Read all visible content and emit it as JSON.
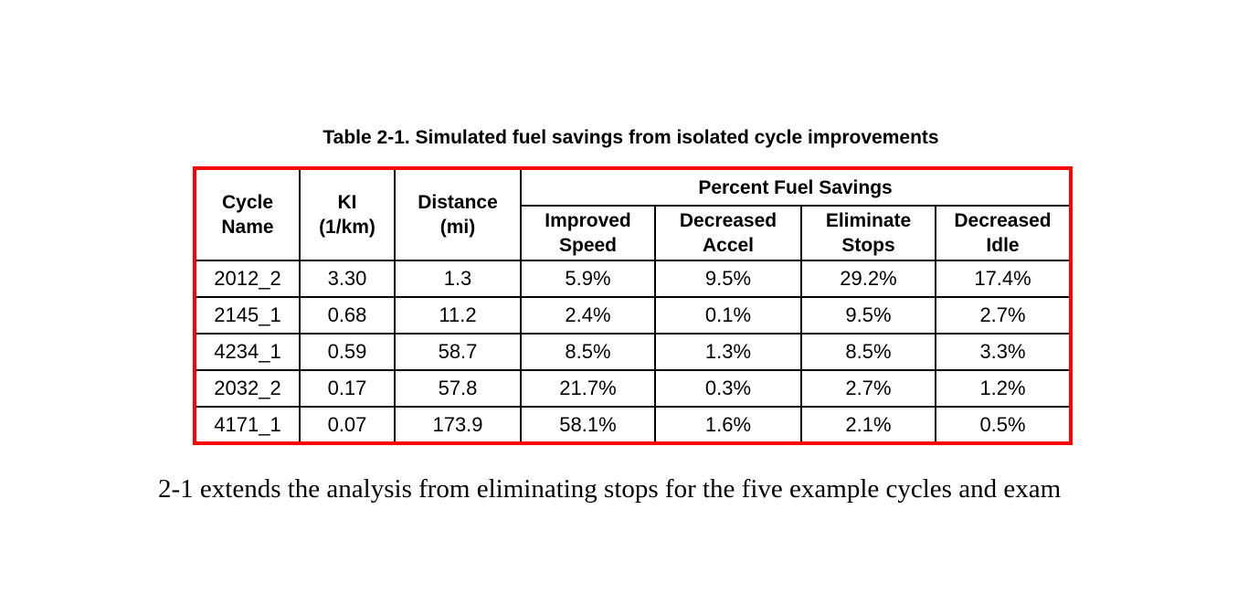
{
  "document": {
    "table_caption": "Table 2-1. Simulated fuel savings from isolated cycle improvements",
    "body_text": "2-1 extends the analysis from eliminating stops for the five example cycles and exam"
  },
  "table": {
    "header": {
      "cycle_name": "Cycle\nName",
      "ki": "KI\n(1/km)",
      "distance": "Distance\n(mi)",
      "savings_group": "Percent Fuel Savings",
      "improved_speed": "Improved\nSpeed",
      "decreased_accel": "Decreased\nAccel",
      "eliminate_stops": "Eliminate\nStops",
      "decreased_idle": "Decreased\nIdle"
    },
    "rows": [
      [
        "2012_2",
        "3.30",
        "1.3",
        "5.9%",
        "9.5%",
        "29.2%",
        "17.4%"
      ],
      [
        "2145_1",
        "0.68",
        "11.2",
        "2.4%",
        "0.1%",
        "9.5%",
        "2.7%"
      ],
      [
        "4234_1",
        "0.59",
        "58.7",
        "8.5%",
        "1.3%",
        "8.5%",
        "3.3%"
      ],
      [
        "2032_2",
        "0.17",
        "57.8",
        "21.7%",
        "0.3%",
        "2.7%",
        "1.2%"
      ],
      [
        "4171_1",
        "0.07",
        "173.9",
        "58.1%",
        "1.6%",
        "2.1%",
        "0.5%"
      ]
    ]
  },
  "colors": {
    "table_border": "#ff0000",
    "grid_line": "#000000",
    "text": "#000000",
    "background": "#ffffff"
  }
}
